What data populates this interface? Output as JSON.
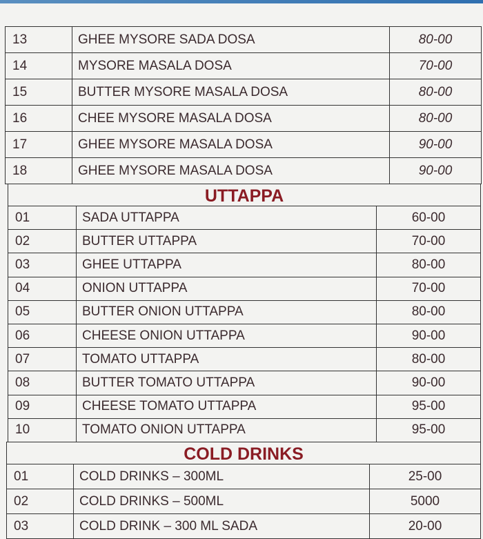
{
  "dosa": {
    "items": [
      {
        "num": "13",
        "name": "GHEE MYSORE SADA DOSA",
        "price": "80-00"
      },
      {
        "num": "14",
        "name": "MYSORE MASALA DOSA",
        "price": "70-00"
      },
      {
        "num": "15",
        "name": "BUTTER MYSORE MASALA DOSA",
        "price": "80-00"
      },
      {
        "num": "16",
        "name": "CHEE MYSORE MASALA DOSA",
        "price": "80-00"
      },
      {
        "num": "17",
        "name": "GHEE MYSORE MASALA DOSA",
        "price": "90-00"
      },
      {
        "num": "18",
        "name": "GHEE MYSORE MASALA DOSA",
        "price": "90-00"
      }
    ]
  },
  "uttappa": {
    "title": "UTTAPPA",
    "items": [
      {
        "num": "01",
        "name": "SADA UTTAPPA",
        "price": "60-00"
      },
      {
        "num": "02",
        "name": "BUTTER UTTAPPA",
        "price": "70-00"
      },
      {
        "num": "03",
        "name": "GHEE UTTAPPA",
        "price": "80-00"
      },
      {
        "num": "04",
        "name": "ONION UTTAPPA",
        "price": "70-00"
      },
      {
        "num": "05",
        "name": "BUTTER ONION UTTAPPA",
        "price": "80-00"
      },
      {
        "num": "06",
        "name": "CHEESE ONION UTTAPPA",
        "price": "90-00"
      },
      {
        "num": "07",
        "name": "TOMATO UTTAPPA",
        "price": "80-00"
      },
      {
        "num": "08",
        "name": "BUTTER TOMATO UTTAPPA",
        "price": "90-00"
      },
      {
        "num": "09",
        "name": "CHEESE TOMATO UTTAPPA",
        "price": "95-00"
      },
      {
        "num": "10",
        "name": "TOMATO ONION UTTAPPA",
        "price": "95-00"
      }
    ]
  },
  "cold_drinks": {
    "title": "COLD DRINKS",
    "items": [
      {
        "num": "01",
        "name": "COLD DRINKS – 300ML",
        "price": "25-00"
      },
      {
        "num": "02",
        "name": "COLD DRINKS – 500ML",
        "price": "5000"
      },
      {
        "num": "03",
        "name": "COLD DRINK – 300 ML SADA",
        "price": "20-00"
      }
    ]
  },
  "colors": {
    "heading": "#8a1c24",
    "text": "#3b2a2e"
  }
}
